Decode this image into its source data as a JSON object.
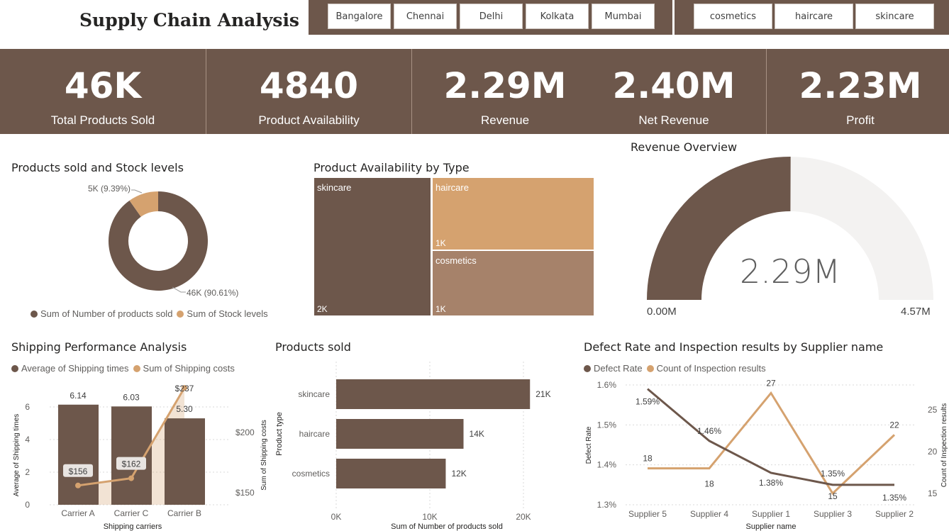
{
  "header": {
    "title": "Supply Chain Analysis"
  },
  "slicers": {
    "cities": [
      "Bangalore",
      "Chennai",
      "Delhi",
      "Kolkata",
      "Mumbai"
    ],
    "product_types": [
      "cosmetics",
      "haircare",
      "skincare"
    ]
  },
  "kpis": [
    {
      "value": "46K",
      "label": "Total Products Sold"
    },
    {
      "value": "4840",
      "label": "Product Availability"
    },
    {
      "value": "2.29M",
      "label": "Revenue"
    },
    {
      "value": "2.40M",
      "label": "Net Revenue"
    },
    {
      "value": "2.23M",
      "label": "Profit"
    }
  ],
  "colors": {
    "brown": "#6d574b",
    "tan": "#d5a26f",
    "mid": "#a6826a",
    "light": "#f3f2f1"
  },
  "chart_data": [
    {
      "type": "pie",
      "title": "Products sold and Stock levels",
      "categories": [
        "Sum of Number of products sold",
        "Sum of Stock levels"
      ],
      "values": [
        46,
        5
      ],
      "data_labels": [
        "46K (90.61%)",
        "5K (9.39%)"
      ]
    },
    {
      "type": "heatmap",
      "title": "Product Availability by Type",
      "categories": [
        "skincare",
        "haircare",
        "cosmetics"
      ],
      "value_labels": [
        "2K",
        "1K",
        "1K"
      ]
    },
    {
      "type": "pie",
      "title": "Revenue Overview",
      "value": 2.29,
      "min": 0,
      "max": 4.57,
      "value_label": "2.29M",
      "min_label": "0.00M",
      "max_label": "4.57M"
    },
    {
      "type": "bar",
      "title": "Shipping Performance Analysis",
      "xlabel": "Shipping carriers",
      "ylabel": "Average of Shipping times",
      "y2label": "Sum of Shipping costs",
      "categories": [
        "Carrier A",
        "Carrier C",
        "Carrier B"
      ],
      "series": [
        {
          "name": "Average of Shipping times",
          "values": [
            6.14,
            6.03,
            5.3
          ],
          "labels": [
            "6.14",
            "6.03",
            "5.30"
          ]
        },
        {
          "name": "Sum of Shipping costs",
          "values": [
            156,
            162,
            237
          ],
          "labels": [
            "$156",
            "$162",
            "$237"
          ]
        }
      ],
      "ylim": [
        0,
        7
      ],
      "y2lim": [
        140,
        240
      ],
      "yticks": [
        "0",
        "2",
        "4",
        "6"
      ],
      "y2ticks": [
        "$150",
        "$200"
      ]
    },
    {
      "type": "bar",
      "title": "Products sold",
      "xlabel": "Sum of Number of products sold",
      "ylabel": "Product type",
      "categories": [
        "skincare",
        "haircare",
        "cosmetics"
      ],
      "values": [
        20.7,
        13.6,
        11.7
      ],
      "data_labels": [
        "21K",
        "14K",
        "12K"
      ],
      "xlim": [
        0,
        21
      ],
      "xticks": [
        "0K",
        "10K",
        "20K"
      ]
    },
    {
      "type": "line",
      "title": "Defect Rate and Inspection results by Supplier name",
      "xlabel": "Supplier name",
      "ylabel": "Defect Rate",
      "y2label": "Count of Inspection results",
      "categories": [
        "Supplier 5",
        "Supplier 4",
        "Supplier 1",
        "Supplier 3",
        "Supplier 2"
      ],
      "series": [
        {
          "name": "Defect Rate",
          "values": [
            1.59,
            1.46,
            1.38,
            1.35,
            1.35
          ],
          "labels": [
            "1.59%",
            "1.46%",
            "1.38%",
            "1.35%",
            "1.35%"
          ]
        },
        {
          "name": "Count of Inspection results",
          "values": [
            18,
            18,
            27,
            15,
            22
          ],
          "labels": [
            "18",
            "18",
            "27",
            "15",
            "22"
          ]
        }
      ],
      "ylim": [
        1.3,
        1.6
      ],
      "y2lim": [
        13,
        28
      ],
      "yticks": [
        "1.3%",
        "1.4%",
        "1.5%",
        "1.6%"
      ],
      "y2ticks": [
        "15",
        "20",
        "25"
      ]
    }
  ]
}
